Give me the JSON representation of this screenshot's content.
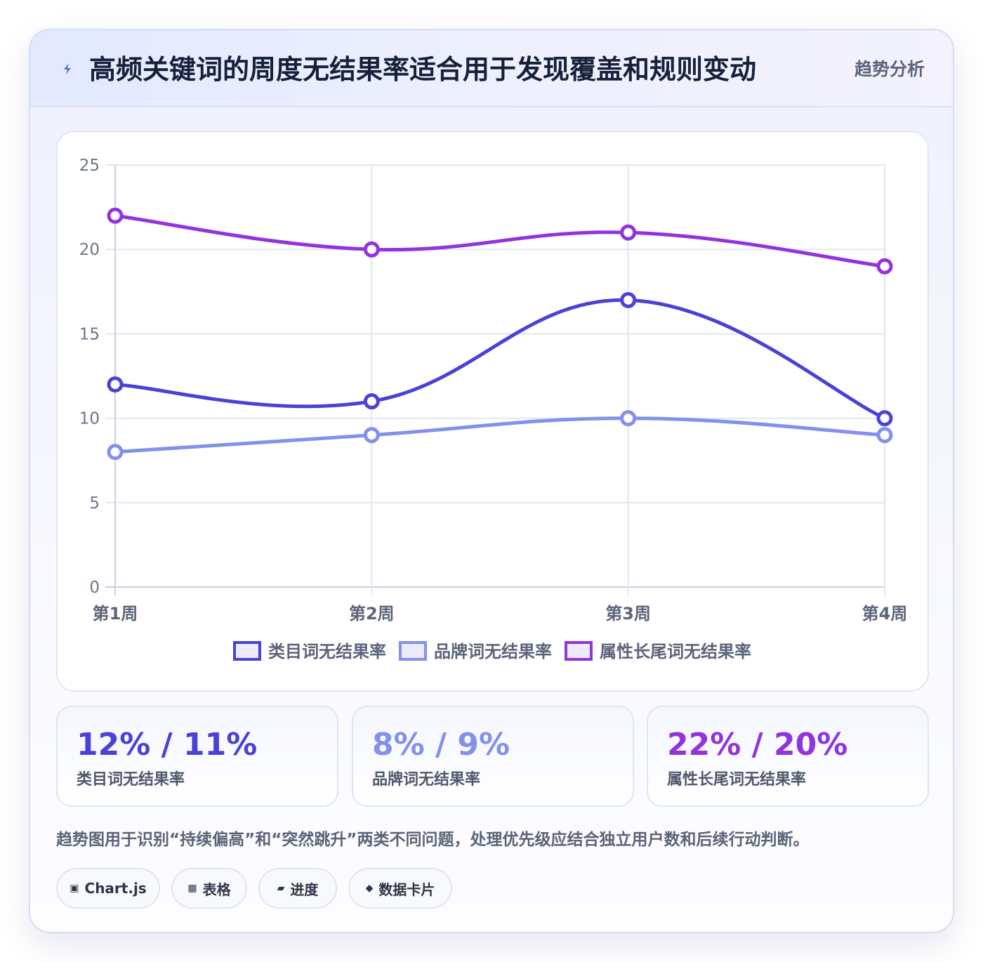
{
  "header": {
    "icon": "bolt-icon",
    "title": "高频关键词的周度无结果率适合用于发现覆盖和规则变动",
    "badge": "趋势分析"
  },
  "chart_data": {
    "type": "line",
    "categories": [
      "第1周",
      "第2周",
      "第3周",
      "第4周"
    ],
    "ylim": [
      0,
      25
    ],
    "yticks": [
      0,
      5,
      10,
      15,
      20,
      25
    ],
    "grid": true,
    "smooth": true,
    "legend_position": "bottom-center",
    "series": [
      {
        "name": "类目词无结果率",
        "values": [
          12,
          11,
          17,
          10
        ],
        "color": "#4a42d6"
      },
      {
        "name": "品牌词无结果率",
        "values": [
          8,
          9,
          10,
          9
        ],
        "color": "#8390ec"
      },
      {
        "name": "属性长尾词无结果率",
        "values": [
          22,
          20,
          21,
          19
        ],
        "color": "#9234dd"
      }
    ]
  },
  "stats": [
    {
      "value": "12% / 11%",
      "label": "类目词无结果率",
      "color": "#4a42d6"
    },
    {
      "value": "8% / 9%",
      "label": "品牌词无结果率",
      "color": "#8390ec"
    },
    {
      "value": "22% / 20%",
      "label": "属性长尾词无结果率",
      "color": "#9234dd"
    }
  ],
  "note": "趋势图用于识别“持续偏高”和“突然跳升”两类不同问题，处理优先级应结合独立用户数和后续行动判断。",
  "chips": [
    {
      "icon": "▣",
      "label": "Chart.js"
    },
    {
      "icon": "▦",
      "label": "表格"
    },
    {
      "icon": "▰",
      "label": "进度"
    },
    {
      "icon": "◆",
      "label": "数据卡片"
    }
  ]
}
